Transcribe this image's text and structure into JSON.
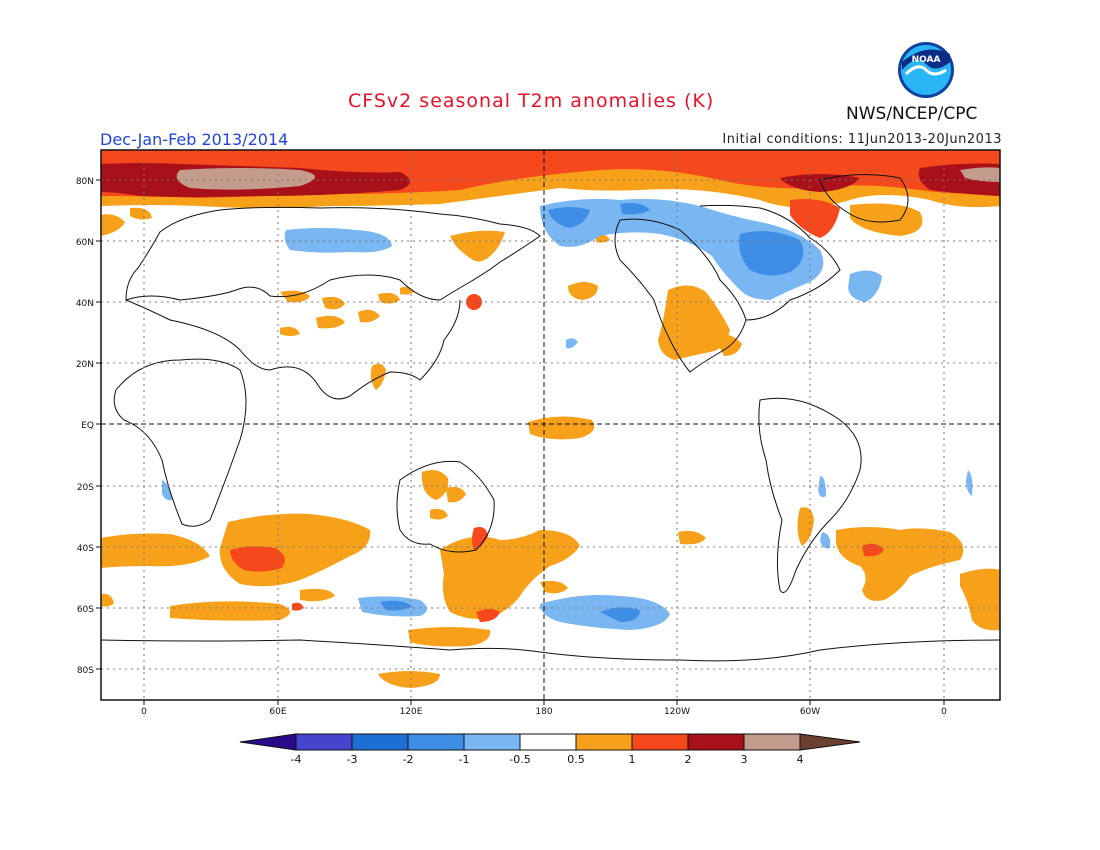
{
  "title": "CFSv2 seasonal T2m anomalies (K)",
  "season": "Dec-Jan-Feb 2013/2014",
  "initial_conditions": "Initial conditions: 11Jun2013-20Jun2013",
  "agency": "NWS/NCEP/CPC",
  "logo_text": "NOAA",
  "map": {
    "lat_labels": [
      "80N",
      "60N",
      "40N",
      "20N",
      "EQ",
      "20S",
      "40S",
      "60S",
      "80S"
    ],
    "lon_labels": [
      "0",
      "60E",
      "120E",
      "180",
      "120W",
      "60W",
      "0"
    ]
  },
  "colorbar": {
    "labels": [
      "-4",
      "-3",
      "-2",
      "-1",
      "-0.5",
      "0.5",
      "1",
      "2",
      "3",
      "4"
    ],
    "colors": [
      "#2a0a8a",
      "#4444cc",
      "#1e6fd4",
      "#3f8ee6",
      "#7ab6f2",
      "#ffffff",
      "#f7a11a",
      "#f5481c",
      "#a8101a",
      "#c49c8e",
      "#6b4030"
    ]
  }
}
